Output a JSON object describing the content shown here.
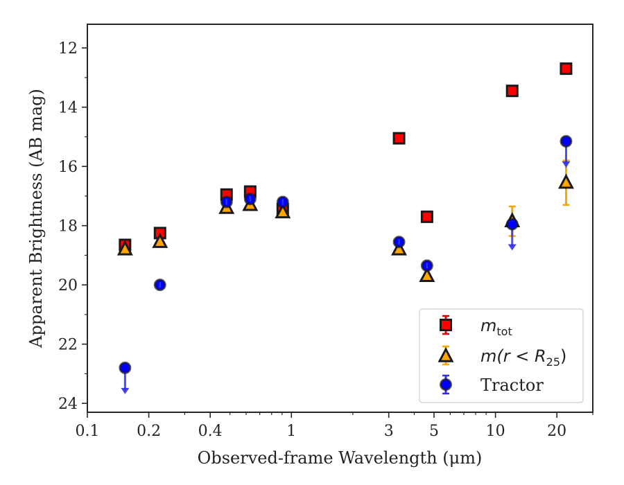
{
  "chart_data": {
    "type": "scatter",
    "xscale": "log",
    "xlim": [
      0.1,
      30
    ],
    "ylim": [
      24.3,
      11.2
    ],
    "y_inverted": true,
    "xlabel": "Observed-frame Wavelength (μm)",
    "ylabel": "Apparent Brightness (AB mag)",
    "x_ticks": [
      0.1,
      0.2,
      0.4,
      1,
      3,
      5,
      10,
      20
    ],
    "x_tick_labels": [
      "0.1",
      "0.2",
      "0.4",
      "1",
      "3",
      "5",
      "10",
      "20"
    ],
    "y_ticks": [
      12,
      14,
      16,
      18,
      20,
      22,
      24
    ],
    "y_tick_labels": [
      "12",
      "14",
      "16",
      "18",
      "20",
      "22",
      "24"
    ],
    "grid": false,
    "legend_position": "lower-right",
    "series": [
      {
        "name": "m_tot",
        "legend_label": "m",
        "legend_sub": "tot",
        "marker": "square",
        "color": "#ff0000",
        "edge_color": "#1a1a1a",
        "err_color": "#dd0000",
        "x": [
          0.153,
          0.227,
          0.481,
          0.628,
          0.907,
          3.37,
          4.62,
          12.08,
          22.19
        ],
        "y": [
          18.65,
          18.25,
          16.95,
          16.85,
          17.45,
          15.05,
          17.7,
          13.45,
          12.7
        ],
        "err": [
          0.1,
          0.05,
          0.05,
          0.05,
          0.05,
          0.05,
          0.05,
          0.05,
          0.05
        ]
      },
      {
        "name": "m(r<R25)",
        "legend_label": "m(r < R",
        "legend_sub": "25",
        "legend_suffix": ")",
        "marker": "triangle",
        "color": "#ffa500",
        "edge_color": "#1a1a1a",
        "err_color": "#ffa500",
        "x": [
          0.153,
          0.227,
          0.481,
          0.628,
          0.907,
          3.37,
          4.62,
          12.08,
          22.19
        ],
        "y": [
          18.8,
          18.55,
          17.4,
          17.3,
          17.55,
          18.8,
          19.7,
          17.85,
          16.55
        ],
        "err": [
          0.05,
          0.05,
          0.05,
          0.05,
          0.05,
          0.05,
          0.05,
          0.5,
          0.75
        ]
      },
      {
        "name": "Tractor",
        "legend_label": "Tractor",
        "marker": "circle",
        "color": "#0000ff",
        "edge_color": "#1a1a1a",
        "err_color": "#2e2ef0",
        "x": [
          0.153,
          0.227,
          0.481,
          0.628,
          0.907,
          3.37,
          4.62,
          12.08,
          22.19
        ],
        "y": [
          22.8,
          20.0,
          17.2,
          17.1,
          17.2,
          18.55,
          19.35,
          17.95,
          15.15
        ],
        "err": [
          0,
          0.05,
          0.05,
          0.05,
          0.05,
          0.05,
          0.05,
          0,
          0
        ],
        "upper_limit": [
          true,
          false,
          false,
          false,
          false,
          false,
          false,
          true,
          true
        ]
      }
    ]
  }
}
